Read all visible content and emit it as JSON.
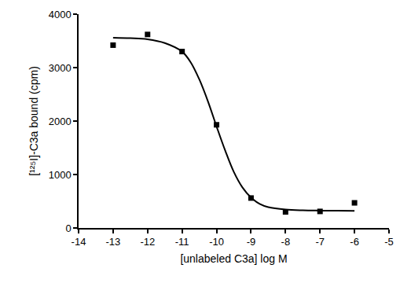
{
  "chart_data": {
    "type": "scatter",
    "xlabel": "[unlabeled C3a] log M",
    "ylabel": "[¹²⁵I]-C3a bound (cpm)",
    "xlim": [
      -14,
      -5
    ],
    "xticks": [
      -14,
      -13,
      -12,
      -11,
      -10,
      -9,
      -8,
      -7,
      -6,
      -5
    ],
    "ylim": [
      0,
      4000
    ],
    "yticks": [
      0,
      1000,
      2000,
      3000,
      4000
    ],
    "grid": false,
    "series": [
      {
        "type": "scatter",
        "marker": "square",
        "color": "#000000",
        "x": [
          -13,
          -12,
          -11,
          -10,
          -9,
          -8,
          -7,
          -6
        ],
        "values": [
          3420,
          3620,
          3300,
          1930,
          560,
          300,
          310,
          470
        ]
      },
      {
        "type": "line",
        "line_style": "solid",
        "color": "#000000",
        "x": [
          -13,
          -12.5,
          -12,
          -11.5,
          -11,
          -10.75,
          -10.5,
          -10.25,
          -10,
          -9.75,
          -9.5,
          -9.25,
          -9,
          -8.75,
          -8.5,
          -8,
          -7.5,
          -7,
          -6.5,
          -6
        ],
        "values": [
          3560,
          3550,
          3530,
          3460,
          3300,
          3100,
          2780,
          2370,
          1900,
          1450,
          1050,
          760,
          570,
          450,
          390,
          345,
          330,
          325,
          322,
          320
        ]
      }
    ]
  }
}
